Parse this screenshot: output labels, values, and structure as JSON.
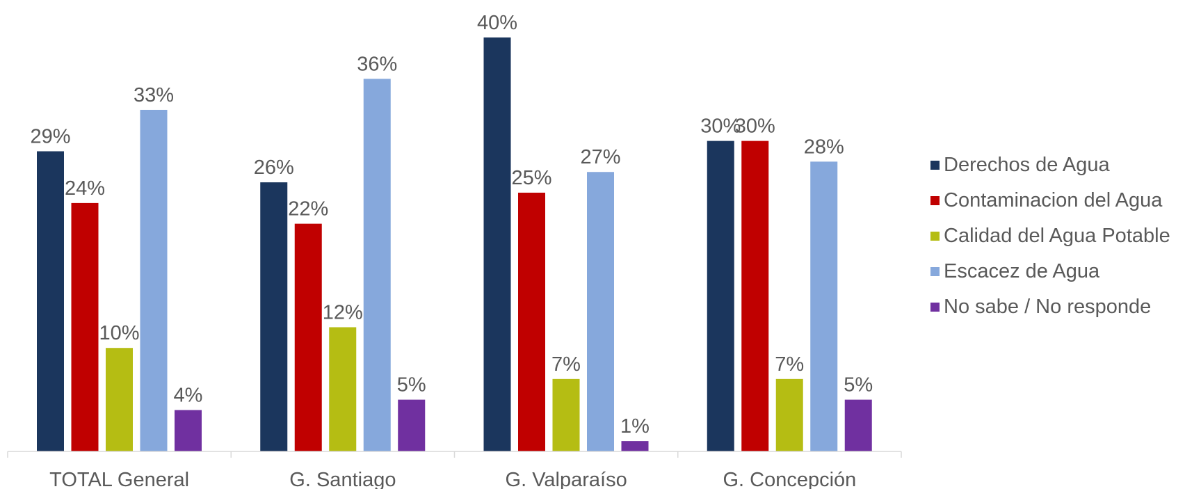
{
  "chart_data": {
    "type": "bar",
    "categories": [
      "TOTAL General",
      "G. Santiago",
      "G. Valparaíso",
      "G. Concepción"
    ],
    "series": [
      {
        "name": "Derechos de Agua",
        "color": "#1B365D",
        "values": [
          29,
          26,
          40,
          30
        ]
      },
      {
        "name": "Contaminacion del Agua",
        "color": "#C00000",
        "values": [
          24,
          22,
          25,
          30
        ]
      },
      {
        "name": "Calidad del Agua Potable",
        "color": "#B5BD13",
        "values": [
          10,
          12,
          7,
          7
        ]
      },
      {
        "name": "Escacez de Agua",
        "color": "#86A8DC",
        "values": [
          33,
          36,
          27,
          28
        ]
      },
      {
        "name": "No sabe / No responde",
        "color": "#7030A0",
        "values": [
          4,
          5,
          1,
          5
        ]
      }
    ],
    "value_suffix": "%",
    "ylim": [
      0,
      40
    ],
    "grid": false,
    "legend_position": "right"
  }
}
